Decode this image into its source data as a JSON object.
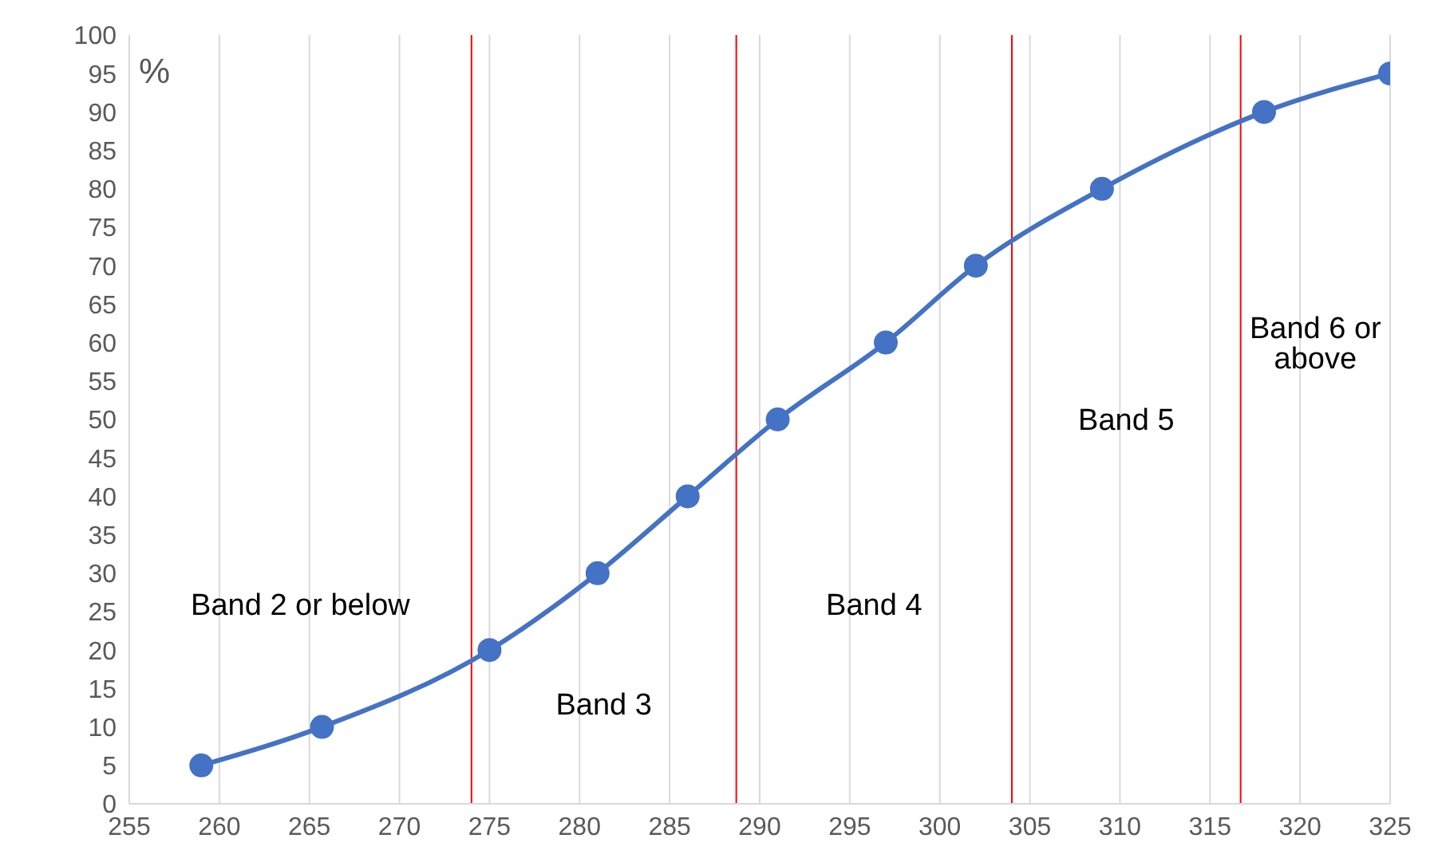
{
  "chart_data": {
    "type": "line",
    "ylabel": "%",
    "x": [
      259,
      265.7,
      275,
      281,
      286,
      291,
      297,
      302,
      309,
      318,
      325
    ],
    "series": [
      {
        "color": "#4472c4",
        "values": [
          5,
          10,
          20,
          30,
          40,
          50,
          60,
          70,
          80,
          90,
          95
        ]
      }
    ],
    "xlim": [
      255,
      325
    ],
    "xticks": [
      255,
      260,
      265,
      270,
      275,
      280,
      285,
      290,
      295,
      300,
      305,
      310,
      315,
      320,
      325
    ],
    "ylim": [
      0,
      100
    ],
    "yticks": [
      0,
      5,
      10,
      15,
      20,
      25,
      30,
      35,
      40,
      45,
      50,
      55,
      60,
      65,
      70,
      75,
      80,
      85,
      90,
      95,
      100
    ],
    "grid": "x",
    "marker": "circle",
    "line_style": "solid",
    "legend": false,
    "ref_lines": [
      {
        "axis": "x",
        "value": 274,
        "color": "#ff0000"
      },
      {
        "axis": "x",
        "value": 288.7,
        "color": "#ff0000"
      },
      {
        "axis": "x",
        "value": 304,
        "color": "#ff0000"
      },
      {
        "axis": "x",
        "value": 316.7,
        "color": "#ff0000"
      }
    ],
    "annotations": [
      "Band 2 or below",
      "Band 3",
      "Band 4",
      "Band 5",
      "Band 6 or above"
    ]
  }
}
